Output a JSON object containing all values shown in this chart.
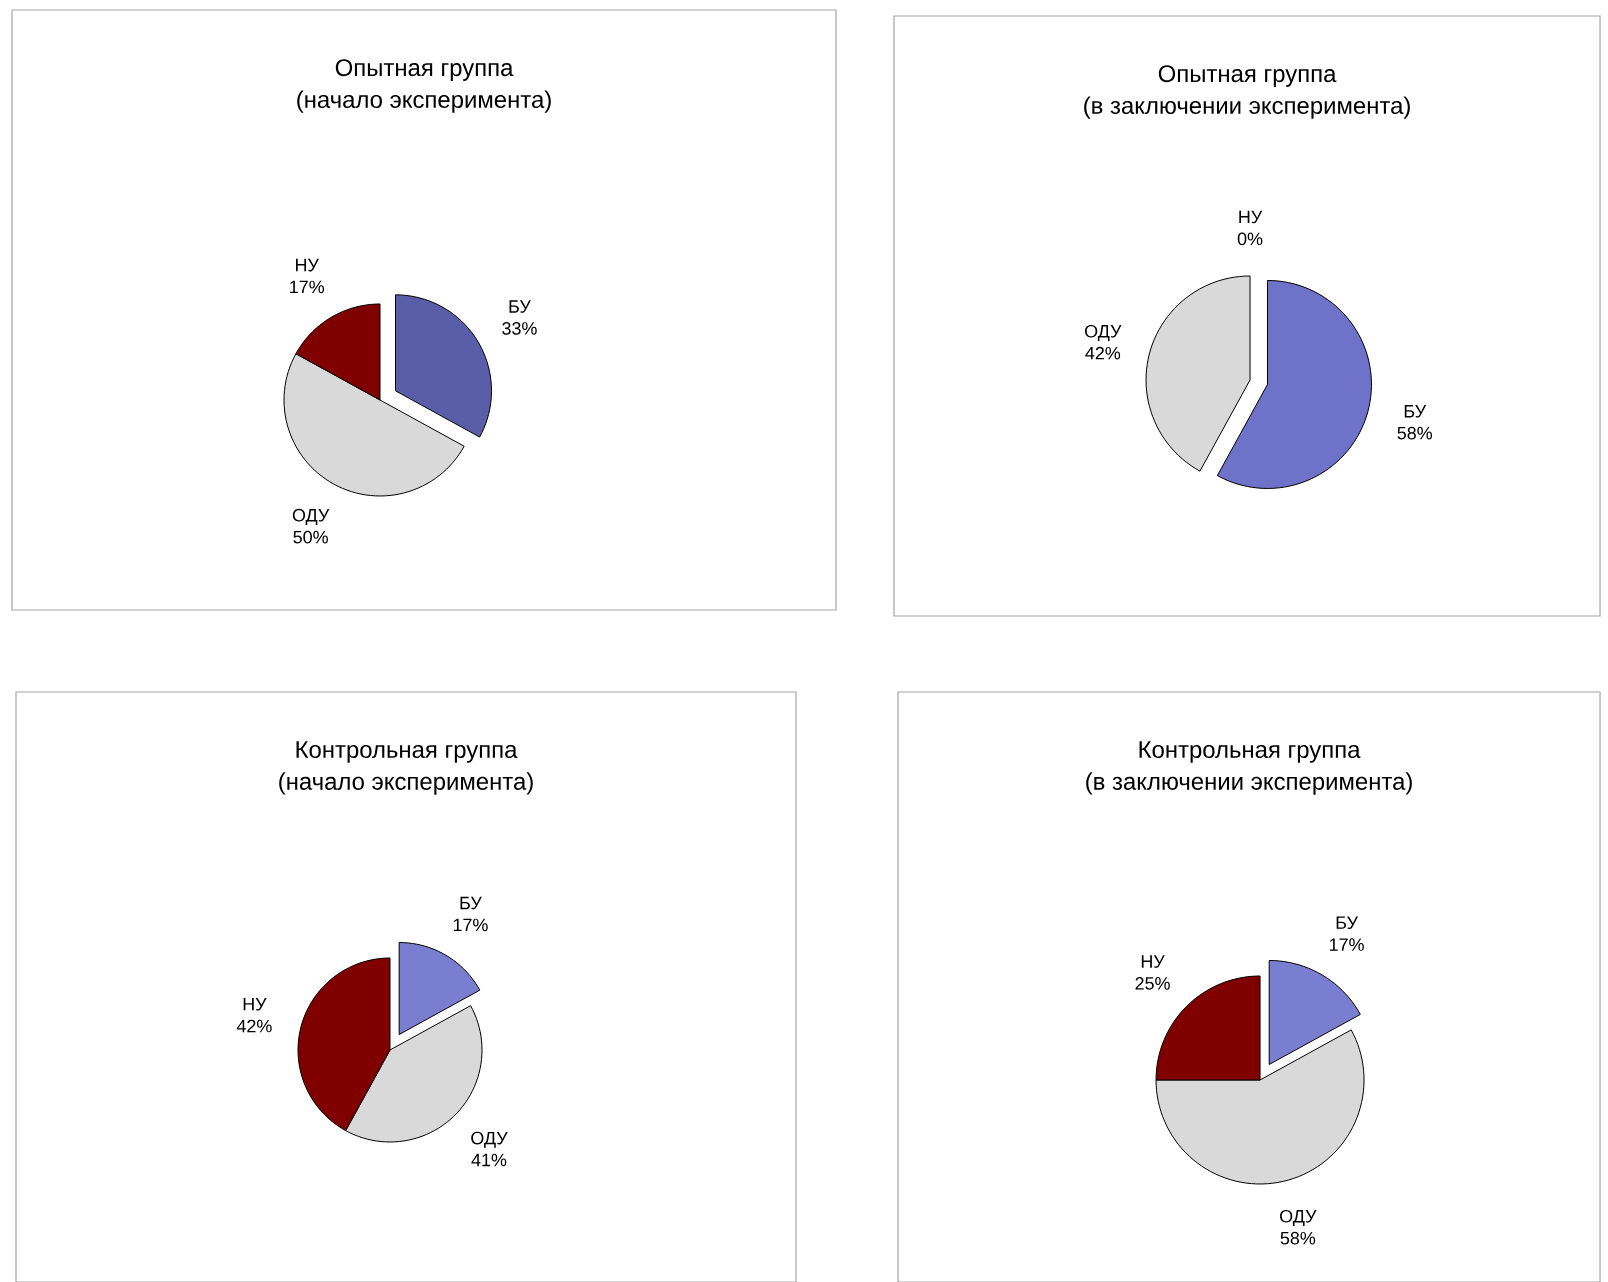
{
  "chart_data": [
    {
      "type": "pie",
      "title": "Опытная группа",
      "subtitle": "(начало эксперимента)",
      "categories": [
        "БУ",
        "ОДУ",
        "НУ"
      ],
      "values": [
        33,
        50,
        17
      ],
      "value_labels": [
        "33%",
        "50%",
        "17%"
      ],
      "colors": [
        "#5a5ea8",
        "#d9d9d9",
        "#800000"
      ]
    },
    {
      "type": "pie",
      "title": "Опытная группа",
      "subtitle": "(в заключении эксперимента)",
      "categories": [
        "БУ",
        "ОДУ",
        "НУ"
      ],
      "values": [
        58,
        42,
        0
      ],
      "value_labels": [
        "58%",
        "42%",
        "0%"
      ],
      "colors": [
        "#6e72c8",
        "#d9d9d9",
        "#800000"
      ]
    },
    {
      "type": "pie",
      "title": "Контрольная группа",
      "subtitle": "(начало эксперимента)",
      "categories": [
        "БУ",
        "ОДУ",
        "НУ"
      ],
      "values": [
        17,
        41,
        42
      ],
      "value_labels": [
        "17%",
        "41%",
        "42%"
      ],
      "colors": [
        "#7a7ed0",
        "#d9d9d9",
        "#800000"
      ]
    },
    {
      "type": "pie",
      "title": "Контрольная группа",
      "subtitle": "(в заключении эксперимента)",
      "categories": [
        "БУ",
        "ОДУ",
        "НУ"
      ],
      "values": [
        17,
        58,
        25
      ],
      "value_labels": [
        "17%",
        "58%",
        "25%"
      ],
      "colors": [
        "#7a7ed0",
        "#d9d9d9",
        "#800000"
      ]
    }
  ]
}
